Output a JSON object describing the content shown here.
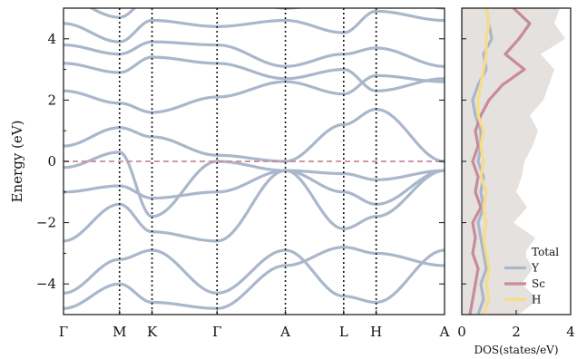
{
  "chart_data": [
    {
      "type": "line",
      "subtype": "band-structure",
      "ylabel": "Energy (eV)",
      "ylim": [
        -5,
        5
      ],
      "yticks": [
        -4,
        -2,
        0,
        2,
        4
      ],
      "k_labels": [
        "Γ",
        "M",
        "K",
        "Γ",
        "A",
        "L",
        "H",
        "A"
      ],
      "k_positions": [
        0,
        1,
        1.58,
        2.74,
        3.96,
        5.0,
        5.58,
        6.8
      ],
      "fermi_level": 0,
      "fermi_color": "#c98a9a",
      "band_color": "#aab7cb",
      "vline_style": "dotted",
      "bands": [
        {
          "values": [
            -4.8,
            -4.0,
            -4.6,
            -4.8,
            -3.4,
            -2.8,
            -3.0,
            -3.4
          ]
        },
        {
          "values": [
            -4.3,
            -3.2,
            -2.9,
            -4.3,
            -2.9,
            -4.4,
            -4.6,
            -2.9
          ]
        },
        {
          "values": [
            -2.6,
            -1.4,
            -2.3,
            -2.6,
            -0.3,
            -2.2,
            -1.8,
            -0.3
          ]
        },
        {
          "values": [
            -1.0,
            -0.8,
            -1.2,
            -1.0,
            -0.3,
            -1.0,
            -1.4,
            -0.3
          ]
        },
        {
          "values": [
            -0.2,
            0.3,
            -1.8,
            0.0,
            -0.3,
            -0.4,
            -0.6,
            -0.3
          ]
        },
        {
          "values": [
            0.5,
            1.1,
            0.8,
            0.2,
            0.0,
            1.2,
            1.7,
            0.0
          ]
        },
        {
          "values": [
            2.3,
            1.9,
            1.6,
            2.1,
            2.6,
            2.2,
            2.8,
            2.6
          ]
        },
        {
          "values": [
            3.2,
            2.9,
            3.4,
            3.2,
            2.7,
            3.0,
            2.3,
            2.7
          ]
        },
        {
          "values": [
            3.8,
            3.5,
            3.9,
            3.8,
            3.1,
            3.5,
            3.7,
            3.1
          ]
        },
        {
          "values": [
            4.5,
            3.9,
            4.6,
            4.4,
            4.6,
            4.2,
            4.9,
            4.6
          ]
        },
        {
          "values": [
            5.3,
            4.7,
            5.4,
            5.5,
            5.0,
            5.2,
            5.6,
            5.0
          ]
        }
      ]
    },
    {
      "type": "line",
      "subtype": "density-of-states",
      "xlabel": "DOS(states/eV)",
      "xlim": [
        0,
        4
      ],
      "xticks": [
        0,
        2,
        4
      ],
      "ylim": [
        -5,
        5
      ],
      "energies": [
        -5,
        -4.5,
        -4,
        -3.5,
        -3,
        -2.5,
        -2,
        -1.5,
        -1,
        -0.5,
        0,
        0.5,
        1,
        1.5,
        2,
        2.5,
        3,
        3.5,
        4,
        4.5,
        5
      ],
      "legend_position": "lower-right",
      "series": [
        {
          "name": "Total",
          "color": "#e4e1df",
          "fill": true,
          "values": [
            2.1,
            2.8,
            2.2,
            2.6,
            2.3,
            2.7,
            1.9,
            2.4,
            2.0,
            2.2,
            2.3,
            2.6,
            2.8,
            2.5,
            3.0,
            3.2,
            3.4,
            2.9,
            3.8,
            3.4,
            3.6
          ]
        },
        {
          "name": "Y",
          "color": "#aab7cb",
          "values": [
            0.6,
            0.8,
            0.7,
            0.9,
            0.8,
            0.7,
            0.6,
            0.8,
            0.7,
            0.8,
            0.6,
            0.7,
            0.7,
            0.5,
            0.4,
            0.6,
            0.9,
            0.8,
            1.1,
            1.0,
            0.9
          ]
        },
        {
          "name": "Sc",
          "color": "#c98a9a",
          "values": [
            0.3,
            0.4,
            0.5,
            0.6,
            0.4,
            0.5,
            0.4,
            0.7,
            0.5,
            0.6,
            0.4,
            0.6,
            0.5,
            0.7,
            1.0,
            1.5,
            2.3,
            1.6,
            2.1,
            2.5,
            1.9
          ]
        },
        {
          "name": "H",
          "color": "#f7dc8a",
          "values": [
            0.8,
            1.0,
            0.9,
            1.0,
            0.9,
            0.8,
            0.9,
            0.8,
            0.9,
            0.7,
            0.8,
            0.7,
            0.8,
            0.6,
            0.6,
            0.7,
            0.8,
            0.9,
            0.9,
            1.0,
            0.9
          ]
        }
      ]
    }
  ]
}
